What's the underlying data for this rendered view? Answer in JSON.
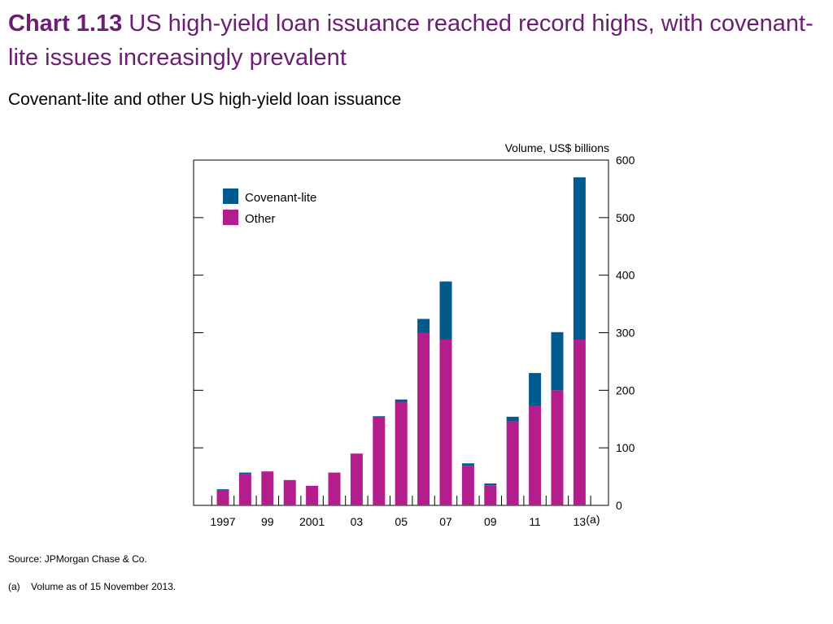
{
  "heading": {
    "lead": "Chart 1.13",
    "text": "US high-yield loan issuance reached record highs, with covenant-lite issues increasingly prevalent"
  },
  "subtitle": "Covenant-lite and other US high-yield loan issuance",
  "chart_data": {
    "type": "bar",
    "stacked": true,
    "categories": [
      "1997",
      "1998",
      "1999",
      "2000",
      "2001",
      "2002",
      "2003",
      "2004",
      "2005",
      "2006",
      "2007",
      "2008",
      "2009",
      "2010",
      "2011",
      "2012",
      "2013"
    ],
    "tick_labels": [
      "1997",
      "",
      "99",
      "",
      "2001",
      "",
      "03",
      "",
      "05",
      "",
      "07",
      "",
      "09",
      "",
      "11",
      "",
      "13"
    ],
    "tick_label_suffix": {
      "index": 16,
      "text": "(a)"
    },
    "series": [
      {
        "name": "Other",
        "color": "#b31d8c",
        "values": [
          26,
          54,
          59,
          44,
          34,
          57,
          90,
          154,
          180,
          300,
          288,
          69,
          35,
          146,
          173,
          200,
          288
        ]
      },
      {
        "name": "Covenant-lite",
        "color": "#005a8c",
        "values": [
          2,
          3,
          0,
          0,
          0,
          0,
          0,
          1,
          4,
          24,
          101,
          4,
          3,
          8,
          57,
          101,
          282
        ]
      }
    ],
    "ylabel": "Volume, US$ billions",
    "ylim": [
      0,
      600
    ],
    "yticks": [
      0,
      100,
      200,
      300,
      400,
      500,
      600
    ],
    "legend": [
      "Covenant-lite",
      "Other"
    ],
    "legend_position": "top-left",
    "grid": false
  },
  "source": "Source: JPMorgan Chase & Co.",
  "footnote": {
    "mark": "(a)",
    "text": "Volume as of 15 November 2013."
  }
}
